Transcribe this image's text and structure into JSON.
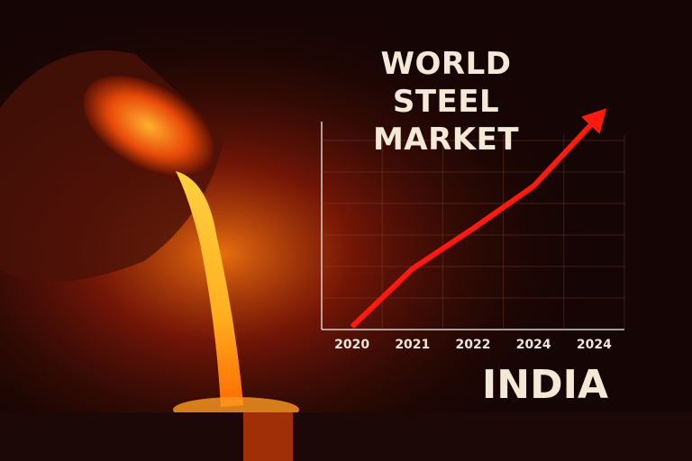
{
  "chart_data": {
    "type": "line",
    "title": "WORLD STEEL MARKET",
    "annotation": "INDIA",
    "categories": [
      "2020",
      "2021",
      "2022",
      "2024",
      "2024"
    ],
    "series": [
      {
        "color": "#ff1a10",
        "values": [
          0,
          2.6,
          4.4,
          6.3,
          9.2
        ]
      }
    ],
    "ylim": [
      0,
      10
    ],
    "grid": true
  }
}
